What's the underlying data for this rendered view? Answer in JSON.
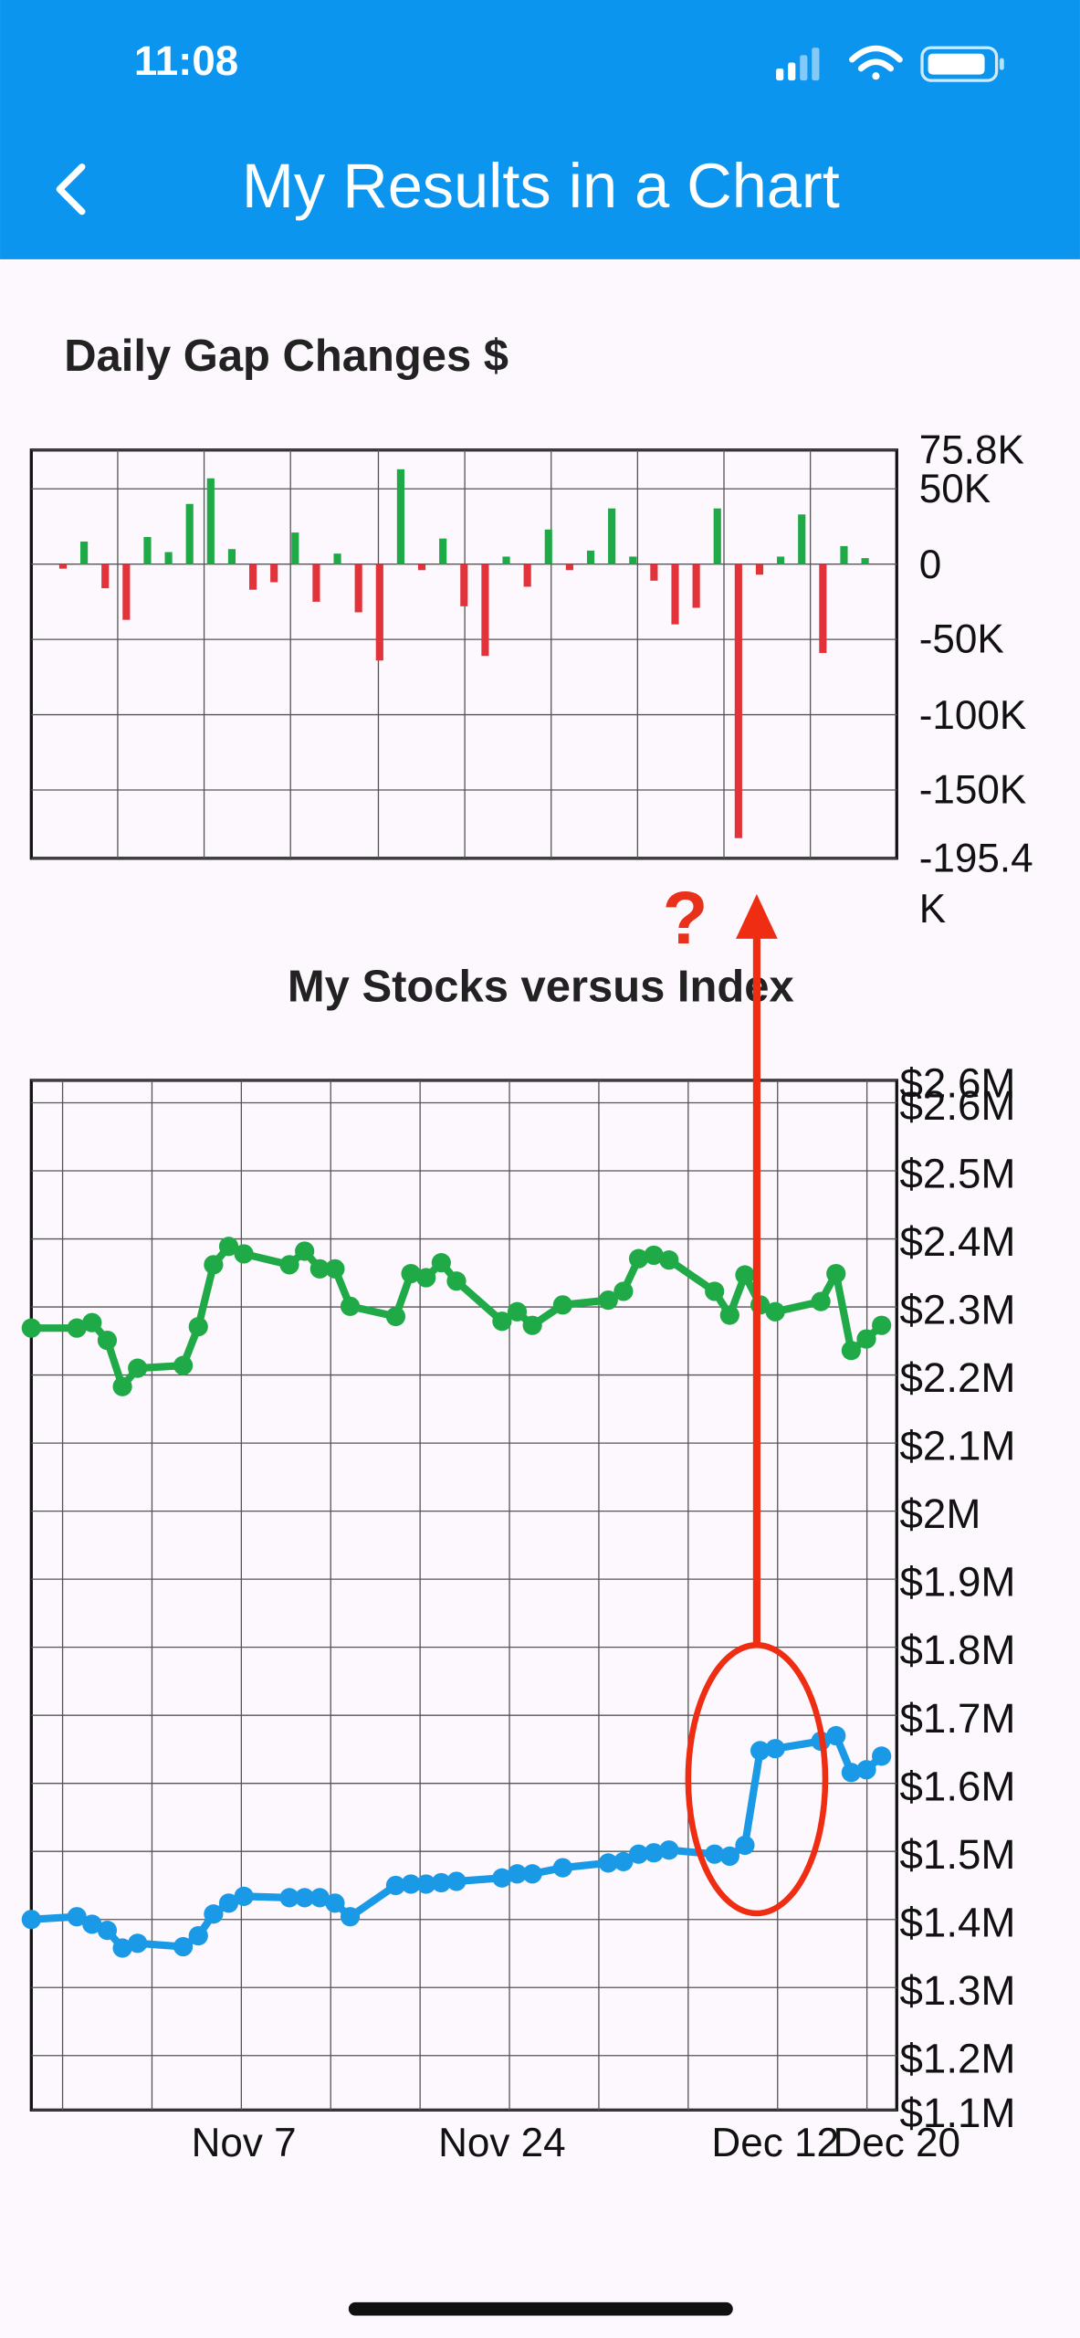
{
  "status_bar": {
    "time": "11:08"
  },
  "header": {
    "title": "My Results in a Chart"
  },
  "annotation": {
    "text": "?"
  },
  "chart_data": [
    {
      "type": "bar",
      "title": "Daily Gap Changes $",
      "categories": [
        null,
        null,
        null,
        null,
        null,
        null,
        null,
        null,
        null,
        null,
        null,
        null,
        null,
        null,
        null,
        null,
        null,
        null,
        null,
        null,
        null,
        null,
        null,
        null,
        null,
        null,
        null,
        null,
        null,
        null,
        null,
        null,
        null,
        null,
        null,
        null,
        null,
        null,
        null
      ],
      "values": [
        -3000,
        15000,
        -16000,
        -37000,
        18000,
        8000,
        40000,
        57000,
        10000,
        -17000,
        -12000,
        21000,
        -25000,
        7000,
        -32000,
        -64000,
        63000,
        -4000,
        17000,
        -28000,
        -61000,
        5000,
        -15000,
        23000,
        -4000,
        9000,
        37000,
        5000,
        -11000,
        -40000,
        -29000,
        37000,
        -182000,
        -7000,
        5000,
        33000,
        -59000,
        12000,
        4000
      ],
      "positive_color": "#1faa47",
      "negative_color": "#e3333a",
      "ylim": [
        -195400,
        75800
      ],
      "yticks": [
        {
          "value": 75800,
          "label": "75.8K"
        },
        {
          "value": 50000,
          "label": "50K"
        },
        0,
        {
          "value": -50000,
          "label": "-50K"
        },
        {
          "value": -100000,
          "label": "-100K"
        },
        {
          "value": -150000,
          "label": "-150K"
        },
        {
          "value": -195400,
          "label": "-195.4K"
        }
      ],
      "grid": true
    },
    {
      "type": "line",
      "title": "My Stocks versus Index",
      "x": [
        "Oct 24",
        "Oct 27",
        "Oct 28",
        "Oct 29",
        "Oct 30",
        "Oct 31",
        "Nov 3",
        "Nov 4",
        "Nov 5",
        "Nov 6",
        "Nov 7",
        "Nov 10",
        "Nov 11",
        "Nov 12",
        "Nov 13",
        "Nov 14",
        "Nov 17",
        "Nov 18",
        "Nov 19",
        "Nov 20",
        "Nov 21",
        "Nov 24",
        "Nov 25",
        "Nov 26",
        "Nov 28",
        "Dec 1",
        "Dec 2",
        "Dec 3",
        "Dec 4",
        "Dec 5",
        "Dec 8",
        "Dec 9",
        "Dec 10",
        "Dec 11",
        "Dec 12",
        "Dec 15",
        "Dec 16",
        "Dec 17",
        "Dec 18",
        "Dec 19"
      ],
      "series": [
        {
          "color": "#1faa47",
          "values": [
            2269000,
            2269000,
            2277000,
            2251000,
            2183000,
            2210000,
            2214000,
            2271000,
            2362000,
            2389000,
            2378000,
            2362000,
            2382000,
            2356000,
            2356000,
            2301000,
            2286000,
            2349000,
            2343000,
            2365000,
            2338000,
            2279000,
            2293000,
            2273000,
            2303000,
            2310000,
            2323000,
            2371000,
            2376000,
            2369000,
            2323000,
            2288000,
            2347000,
            2303000,
            2293000,
            2308000,
            2349000,
            2236000,
            2253000,
            2273000
          ]
        },
        {
          "color": "#1a9ae6",
          "values": [
            1400000,
            1404000,
            1393000,
            1384000,
            1358000,
            1365000,
            1360000,
            1376000,
            1408000,
            1424000,
            1434000,
            1432000,
            1432000,
            1432000,
            1424000,
            1404000,
            1450000,
            1452000,
            1452000,
            1454000,
            1456000,
            1461000,
            1467000,
            1467000,
            1476000,
            1483000,
            1485000,
            1496000,
            1498000,
            1502000,
            1496000,
            1493000,
            1509000,
            1648000,
            1651000,
            1662000,
            1670000,
            1616000,
            1620000,
            1640000
          ]
        }
      ],
      "xlim": [
        "Oct 24",
        "Dec 20"
      ],
      "xticks": [
        "Nov 7",
        "Nov 24",
        "Dec 12",
        "Dec 20"
      ],
      "ylim": [
        1120000,
        2633000
      ],
      "yticks": [
        {
          "value": 2633000,
          "label": "$2.6M"
        },
        {
          "value": 2600000,
          "label": "$2.6M"
        },
        {
          "value": 2500000,
          "label": "$2.5M"
        },
        {
          "value": 2400000,
          "label": "$2.4M"
        },
        {
          "value": 2300000,
          "label": "$2.3M"
        },
        {
          "value": 2200000,
          "label": "$2.2M"
        },
        {
          "value": 2100000,
          "label": "$2.1M"
        },
        {
          "value": 2000000,
          "label": "$2M"
        },
        {
          "value": 1900000,
          "label": "$1.9M"
        },
        {
          "value": 1800000,
          "label": "$1.8M"
        },
        {
          "value": 1700000,
          "label": "$1.7M"
        },
        {
          "value": 1600000,
          "label": "$1.6M"
        },
        {
          "value": 1500000,
          "label": "$1.5M"
        },
        {
          "value": 1400000,
          "label": "$1.4M"
        },
        {
          "value": 1300000,
          "label": "$1.3M"
        },
        {
          "value": 1200000,
          "label": "$1.2M"
        },
        {
          "value": 1120000,
          "label": "$1.1M"
        }
      ],
      "grid": true
    }
  ]
}
